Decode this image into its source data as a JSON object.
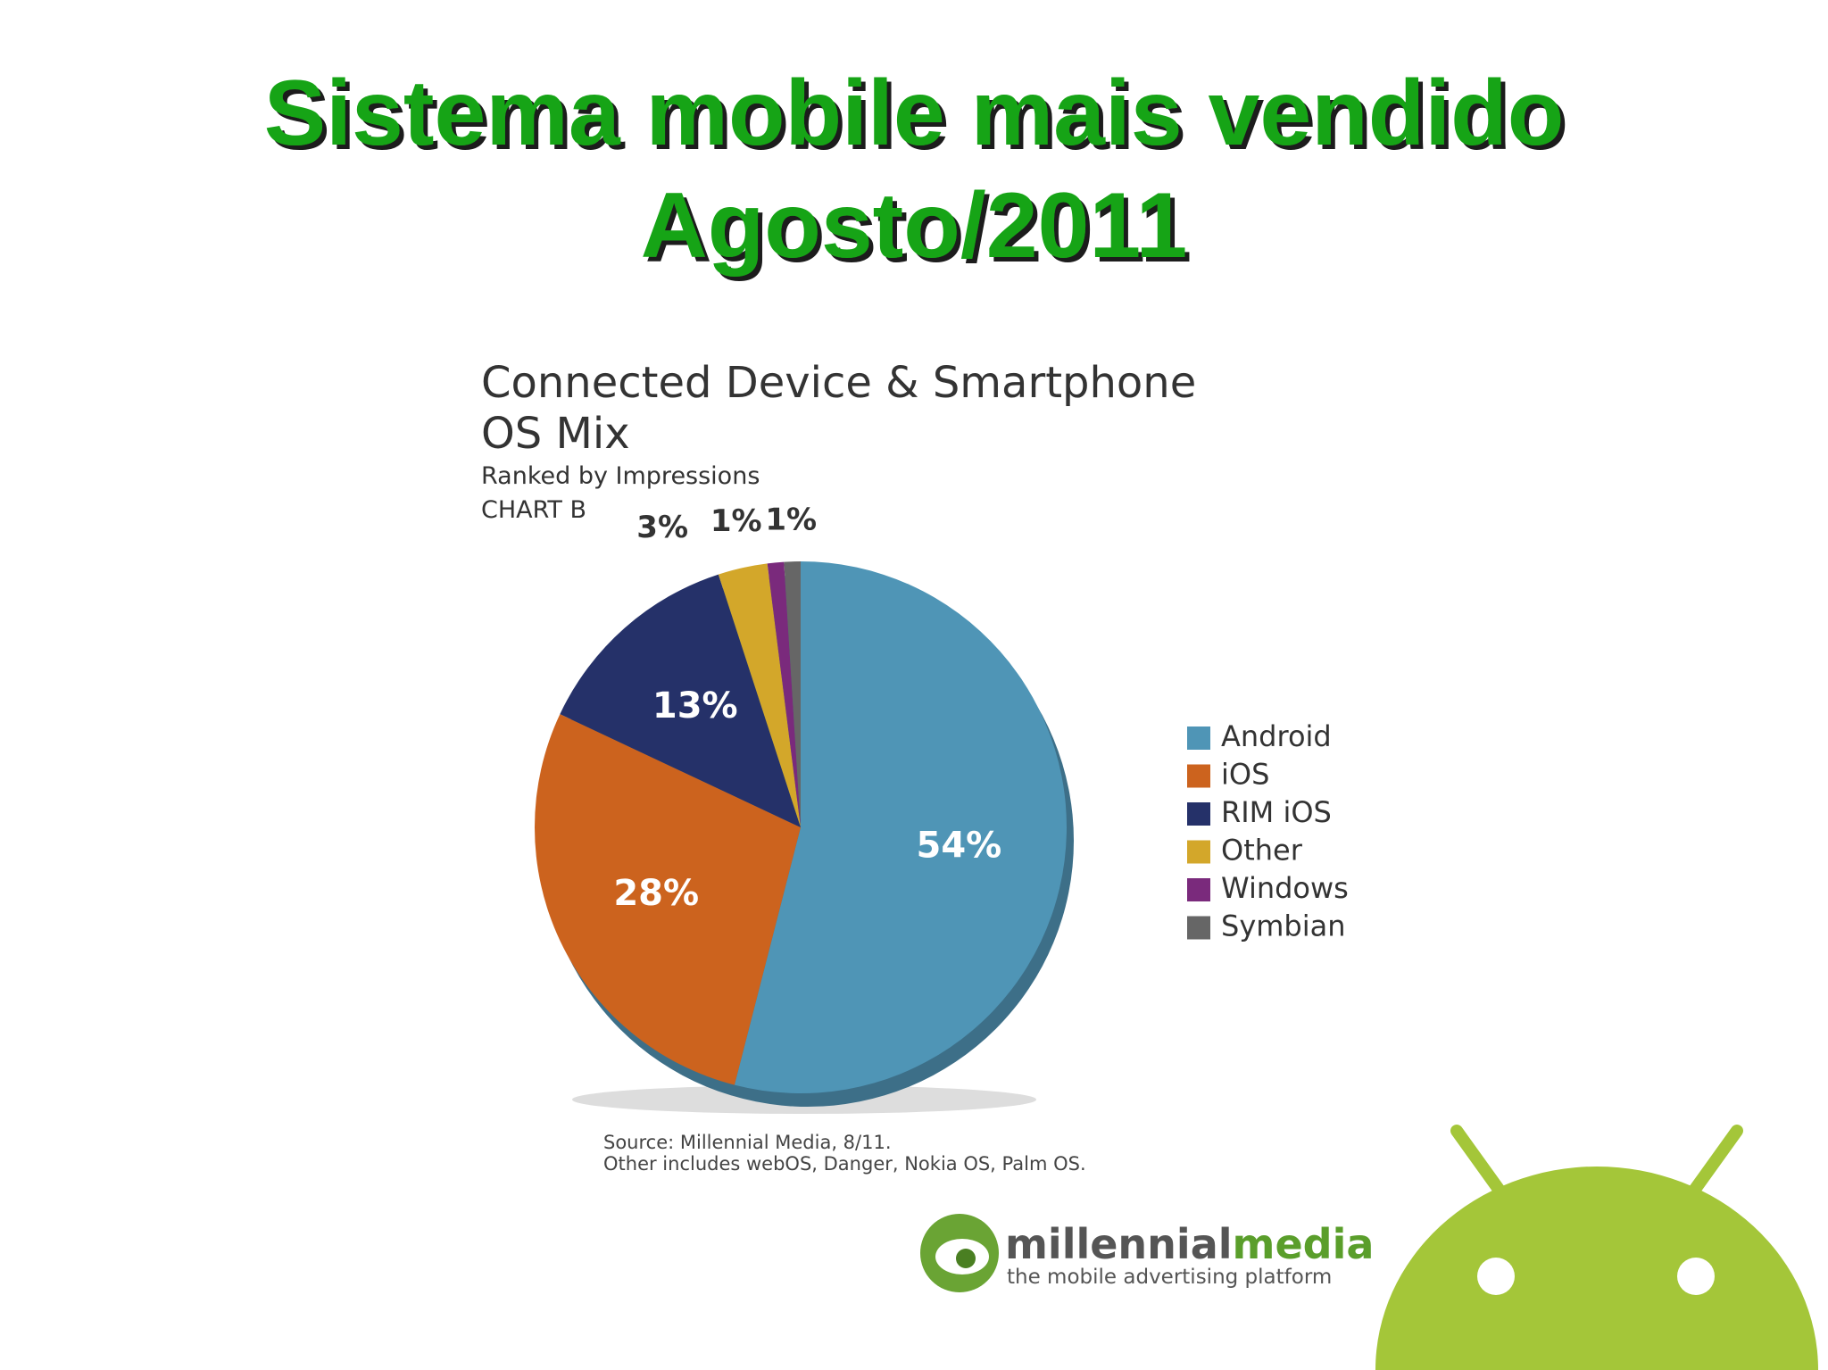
{
  "slide_title": [
    "Sistema mobile mais vendido",
    "Agosto/2011"
  ],
  "chart_data": {
    "type": "pie",
    "title": [
      "Connected Device & Smartphone",
      "OS Mix"
    ],
    "subtitle": "Ranked by Impressions",
    "chart_label": "CHART B",
    "series": [
      {
        "name": "OS Mix",
        "categories": [
          "Android",
          "iOS",
          "RIM iOS",
          "Other",
          "Windows",
          "Symbian"
        ],
        "values": [
          54,
          28,
          13,
          3,
          1,
          1
        ],
        "value_labels": [
          "54%",
          "28%",
          "13%",
          "3%",
          "1%",
          "1%"
        ],
        "colors": [
          "#4f95b6",
          "#cc631e",
          "#253169",
          "#d3a72a",
          "#7a2a7c",
          "#666666"
        ]
      }
    ],
    "legend": "right",
    "notes": [
      "Source: Millennial Media, 8/11.",
      "Other includes webOS, Danger, Nokia OS, Palm OS."
    ]
  },
  "logo": {
    "name_part1": "millennial",
    "name_part2": "media",
    "tagline": "the mobile advertising platform"
  }
}
